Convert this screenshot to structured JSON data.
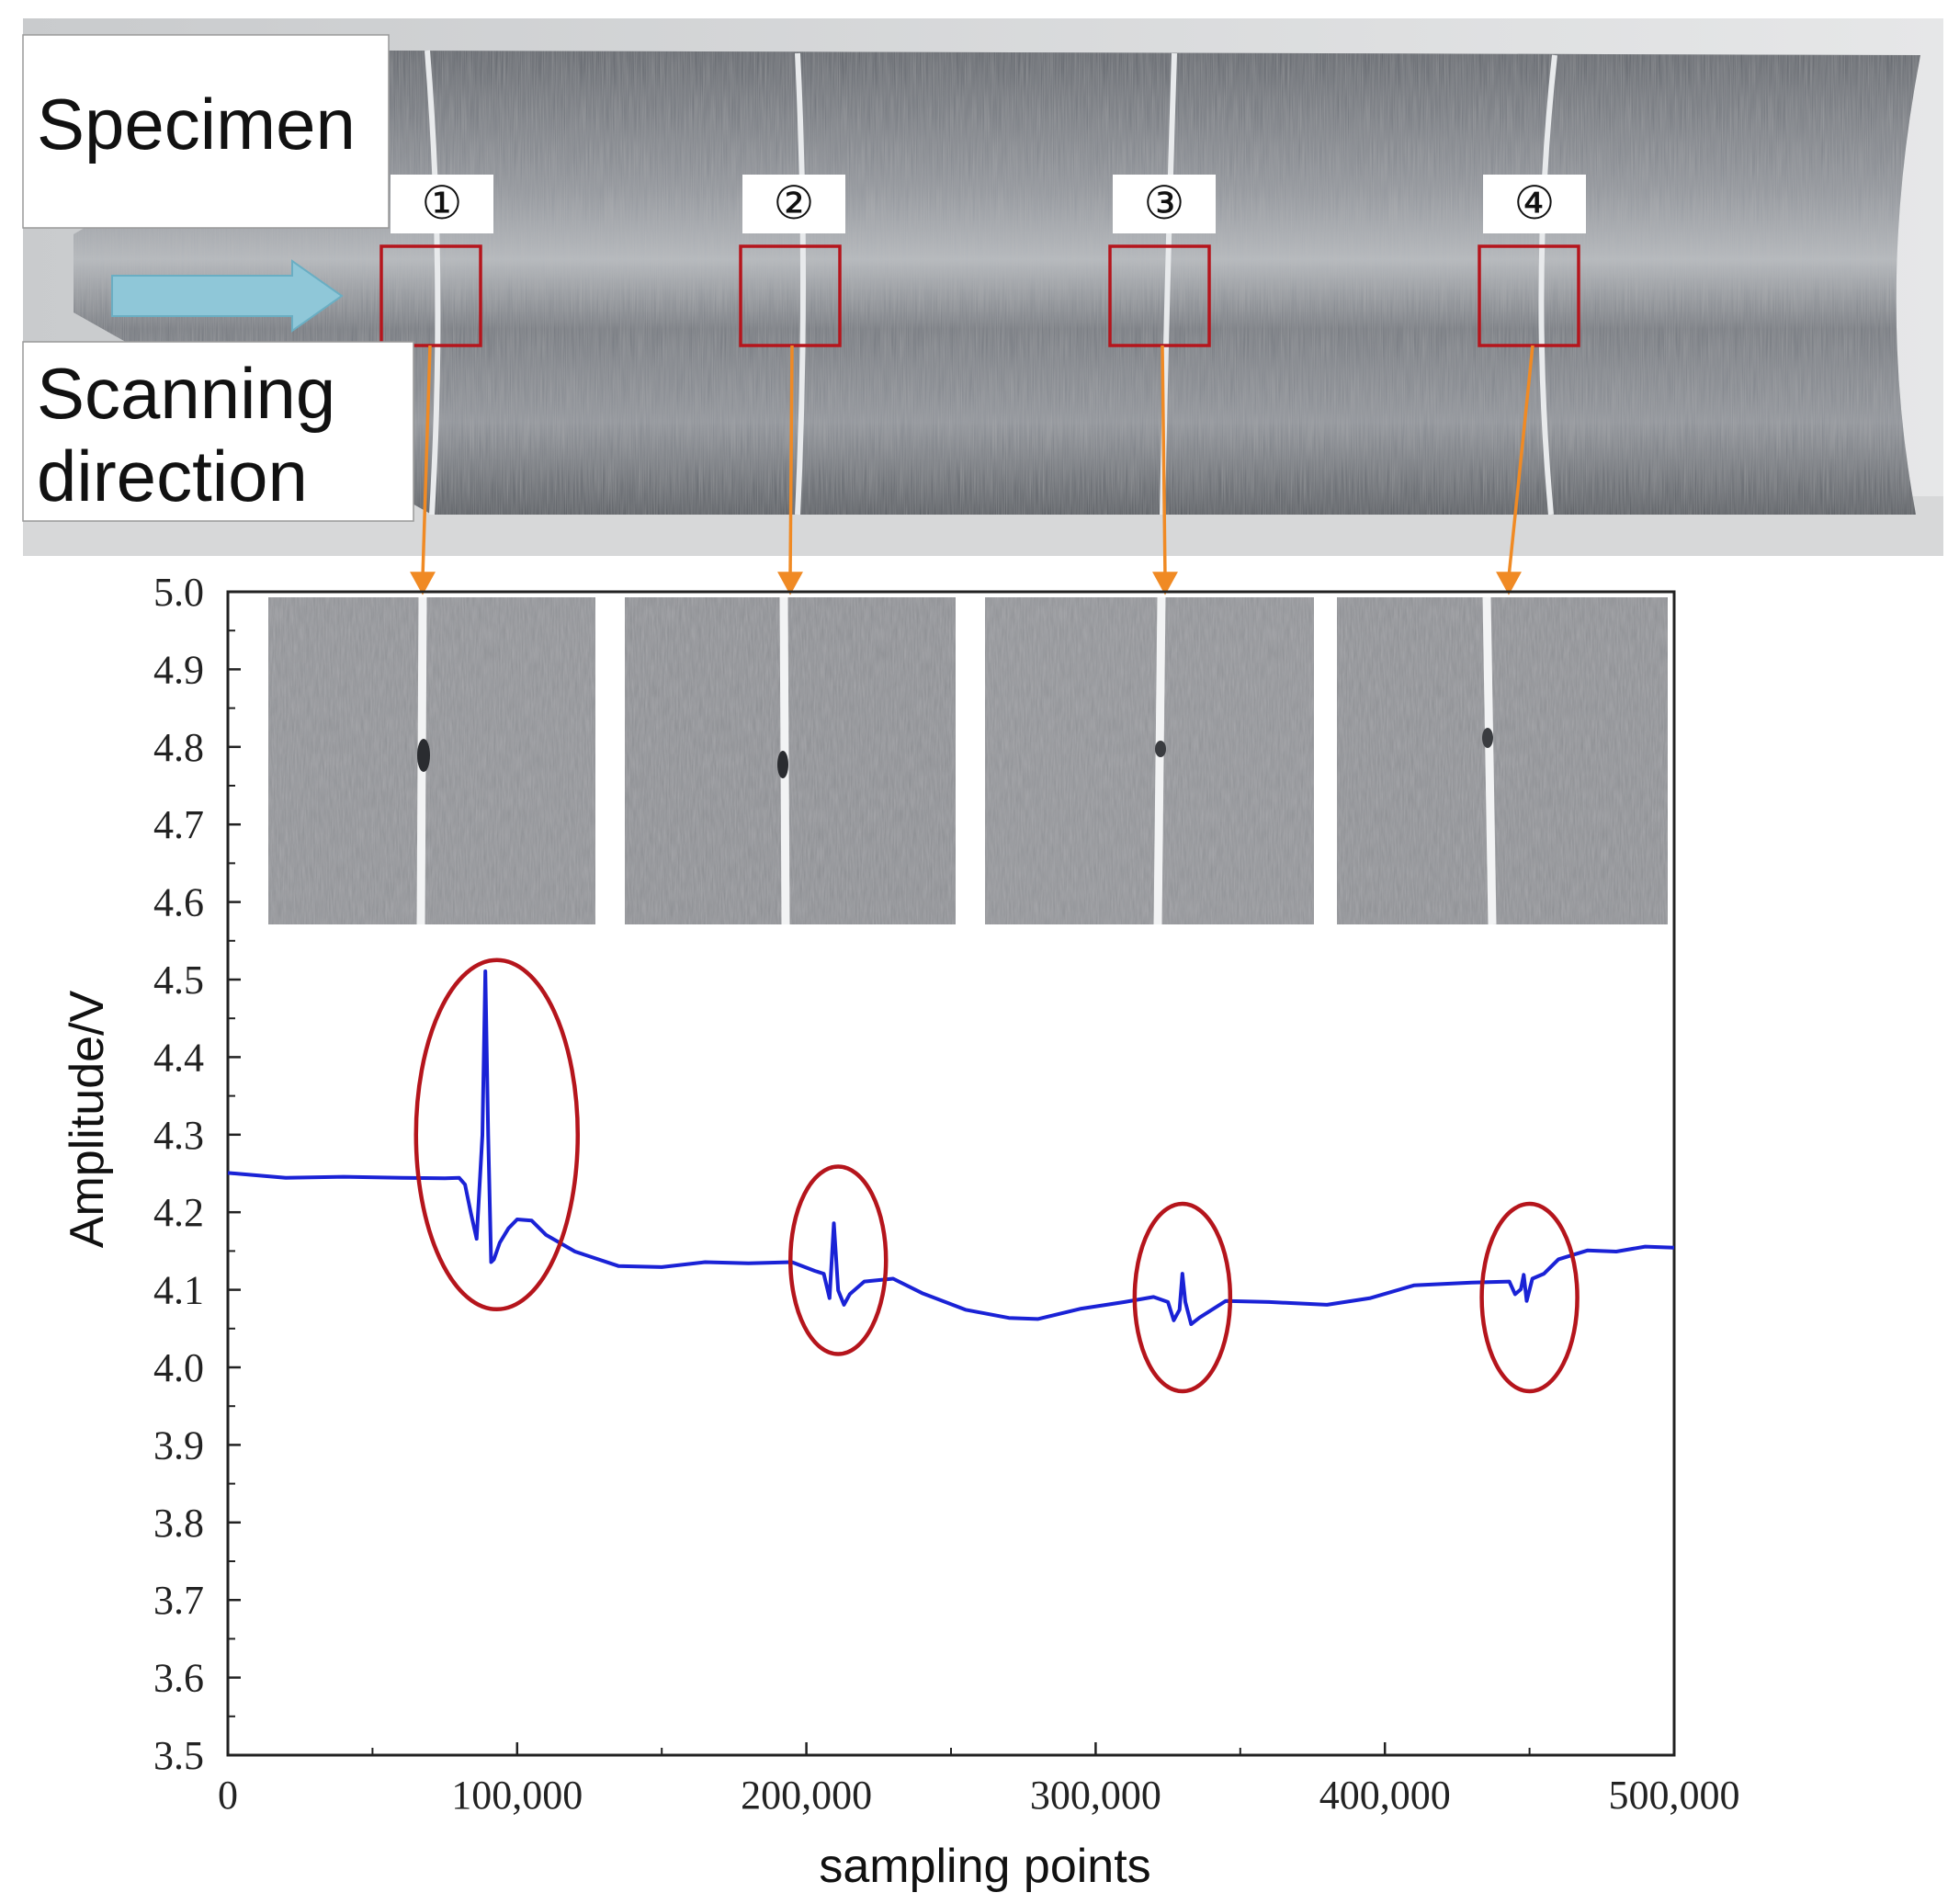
{
  "labels": {
    "specimen": "Specimen",
    "scanning_line1": "Scanning",
    "scanning_line2": "direction",
    "markers": [
      "①",
      "②",
      "③",
      "④"
    ]
  },
  "colors": {
    "signal": "#1a22d6",
    "highlight": "#b5151c",
    "arrow": "#f08a24",
    "scan_arrow": "#8fc7d8",
    "steel_dark": "#4a4e55",
    "steel_light": "#a9adb3"
  },
  "chart_data": {
    "type": "line",
    "xlabel": "sampling points",
    "ylabel": "Amplitude/V",
    "xlim": [
      0,
      500000
    ],
    "ylim": [
      3.5,
      5.0
    ],
    "xticks": [
      0,
      100000,
      200000,
      300000,
      400000,
      500000
    ],
    "xtick_labels": [
      "0",
      "100,000",
      "200,000",
      "300,000",
      "400,000",
      "500,000"
    ],
    "yticks": [
      3.5,
      3.6,
      3.7,
      3.8,
      3.9,
      4.0,
      4.1,
      4.2,
      4.3,
      4.4,
      4.5,
      4.6,
      4.7,
      4.8,
      4.9,
      5.0
    ],
    "ytick_labels": [
      "3.5",
      "3.6",
      "3.7",
      "3.8",
      "3.9",
      "4.0",
      "4.1",
      "4.2",
      "4.3",
      "4.4",
      "4.5",
      "4.6",
      "4.7",
      "4.8",
      "4.9",
      "5.0"
    ],
    "grid": false,
    "series": [
      {
        "x": [
          0,
          20000,
          40000,
          60000,
          75000,
          80000,
          82000,
          84000,
          86000,
          88000,
          89000,
          90000,
          91000,
          92000,
          94000,
          97000,
          100000,
          105000,
          110000,
          120000,
          135000,
          150000,
          165000,
          180000,
          195000,
          203000,
          206000,
          208000,
          209500,
          211000,
          213000,
          215000,
          220000,
          230000,
          240000,
          255000,
          270000,
          280000,
          295000,
          310000,
          320000,
          325000,
          327000,
          329000,
          330000,
          331000,
          333000,
          336000,
          345000,
          360000,
          380000,
          395000,
          410000,
          430000,
          443000,
          445000,
          447000,
          448000,
          449000,
          451000,
          455000,
          460000,
          470000,
          480000,
          490000,
          500000
        ],
        "y": [
          4.25,
          4.245,
          4.245,
          4.245,
          4.243,
          4.245,
          4.235,
          4.2,
          4.165,
          4.3,
          4.51,
          4.3,
          4.135,
          4.14,
          4.16,
          4.18,
          4.19,
          4.19,
          4.17,
          4.15,
          4.13,
          4.13,
          4.135,
          4.135,
          4.135,
          4.125,
          4.12,
          4.09,
          4.185,
          4.1,
          4.08,
          4.095,
          4.11,
          4.115,
          4.095,
          4.075,
          4.063,
          4.063,
          4.075,
          4.085,
          4.09,
          4.085,
          4.06,
          4.075,
          4.12,
          4.085,
          4.055,
          4.065,
          4.085,
          4.085,
          4.08,
          4.09,
          4.105,
          4.11,
          4.11,
          4.095,
          4.1,
          4.12,
          4.085,
          4.115,
          4.12,
          4.14,
          4.15,
          4.15,
          4.155,
          4.155
        ]
      }
    ],
    "annotations": [
      {
        "label": "①",
        "cx": 93000,
        "cy": 4.3
      },
      {
        "label": "②",
        "cx": 211000,
        "cy": 4.138
      },
      {
        "label": "③",
        "cx": 330000,
        "cy": 4.09
      },
      {
        "label": "④",
        "cx": 450000,
        "cy": 4.09
      }
    ]
  }
}
